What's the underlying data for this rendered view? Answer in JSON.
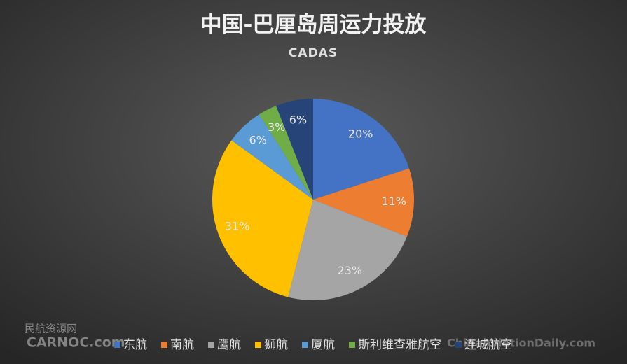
{
  "chart_data": {
    "type": "pie",
    "title": "中国-巴厘岛周运力投放",
    "subtitle": "CADAS",
    "categories": [
      "东航",
      "南航",
      "鹰航",
      "狮航",
      "厦航",
      "斯利维查雅航空",
      "连城航空"
    ],
    "values": [
      20,
      11,
      23,
      31,
      6,
      3,
      6
    ],
    "value_labels": [
      "20%",
      "11%",
      "23%",
      "31%",
      "6%",
      "3%",
      "6%"
    ],
    "colors": [
      "#4472c4",
      "#ed7d31",
      "#a5a5a5",
      "#ffc000",
      "#5b9bd5",
      "#70ad47",
      "#264478"
    ],
    "legend": "bottom"
  },
  "watermark_left": [
    "民航资源网",
    "CARNOC.com"
  ],
  "watermark_right": "ChinaAviationDaily.com"
}
